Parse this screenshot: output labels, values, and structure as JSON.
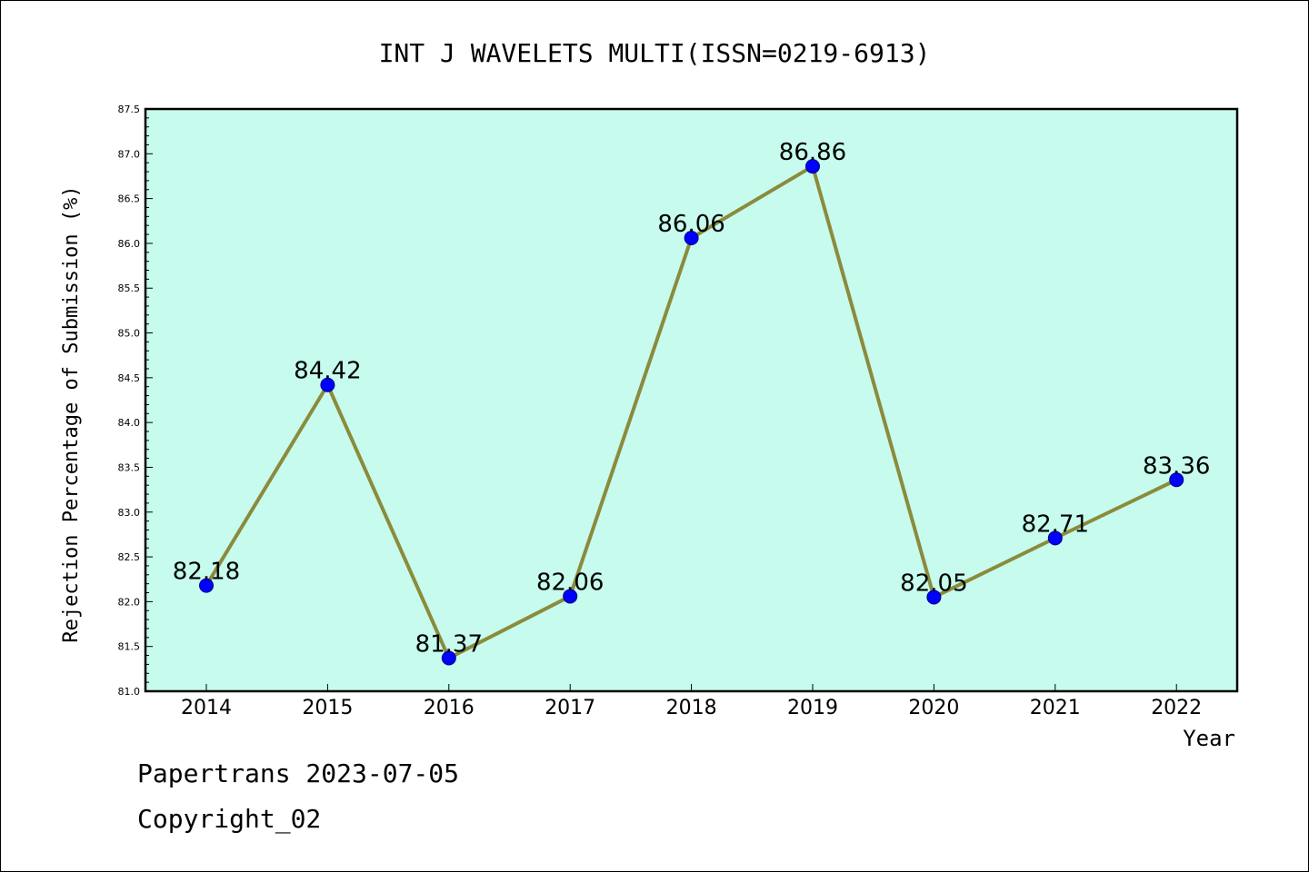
{
  "chart_data": {
    "type": "line",
    "title": "INT J WAVELETS MULTI(ISSN=0219-6913)",
    "xlabel": "Year",
    "ylabel": "Rejection Percentage of Submission (%)",
    "categories": [
      "2014",
      "2015",
      "2016",
      "2017",
      "2018",
      "2019",
      "2020",
      "2021",
      "2022"
    ],
    "values": [
      82.18,
      84.42,
      81.37,
      82.06,
      86.06,
      86.86,
      82.05,
      82.71,
      83.36
    ],
    "data_labels": [
      "82.18",
      "84.42",
      "81.37",
      "82.06",
      "86.06",
      "86.86",
      "82.05",
      "82.71",
      "83.36"
    ],
    "ylim": [
      81.0,
      87.5
    ],
    "yticks": [
      "81.0",
      "81.5",
      "82.0",
      "82.5",
      "83.0",
      "83.5",
      "84.0",
      "84.5",
      "85.0",
      "85.5",
      "86.0",
      "86.5",
      "87.0",
      "87.5"
    ],
    "grid": false,
    "colors": {
      "plot_background": "#c6fbee",
      "line": "#8b8b3c",
      "marker": "#0000ff",
      "marker_edge": "#000080"
    }
  },
  "footer": {
    "line1": "Papertrans 2023-07-05",
    "line2": "Copyright_02"
  }
}
